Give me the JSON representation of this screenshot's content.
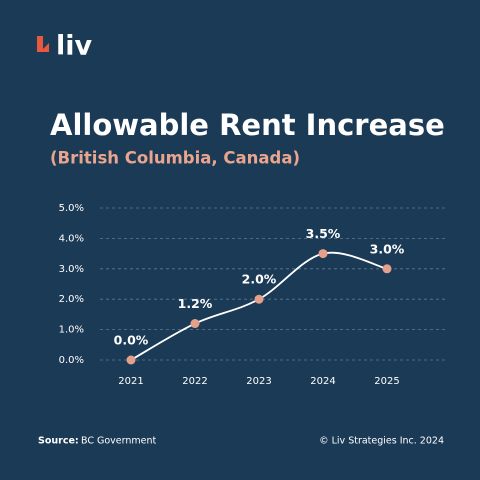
{
  "brand": {
    "name": "liv"
  },
  "chart_data": {
    "type": "line",
    "title": "Allowable Rent Increase",
    "subtitle": "(British Columbia, Canada)",
    "categories": [
      "2021",
      "2022",
      "2023",
      "2024",
      "2025"
    ],
    "values": [
      0,
      1.2,
      2.0,
      3.5,
      3.0
    ],
    "value_labels": [
      "0.0%",
      "1.2%",
      "2.0%",
      "3.5%",
      "3.0%"
    ],
    "line_color": "#ffffff",
    "marker_color": "#e4a08a",
    "ylim": [
      0,
      5
    ],
    "yticks": [
      {
        "value": 0,
        "label": "0.0%"
      },
      {
        "value": 1,
        "label": "1.0%"
      },
      {
        "value": 2,
        "label": "2.0%"
      },
      {
        "value": 3,
        "label": "3.0%"
      },
      {
        "value": 4,
        "label": "4.0%"
      },
      {
        "value": 5,
        "label": "5.0%"
      }
    ],
    "grid": true
  },
  "footer": {
    "source_label": "Source:",
    "source": "BC Government",
    "copyright": "© Liv Strategies Inc. 2024"
  }
}
